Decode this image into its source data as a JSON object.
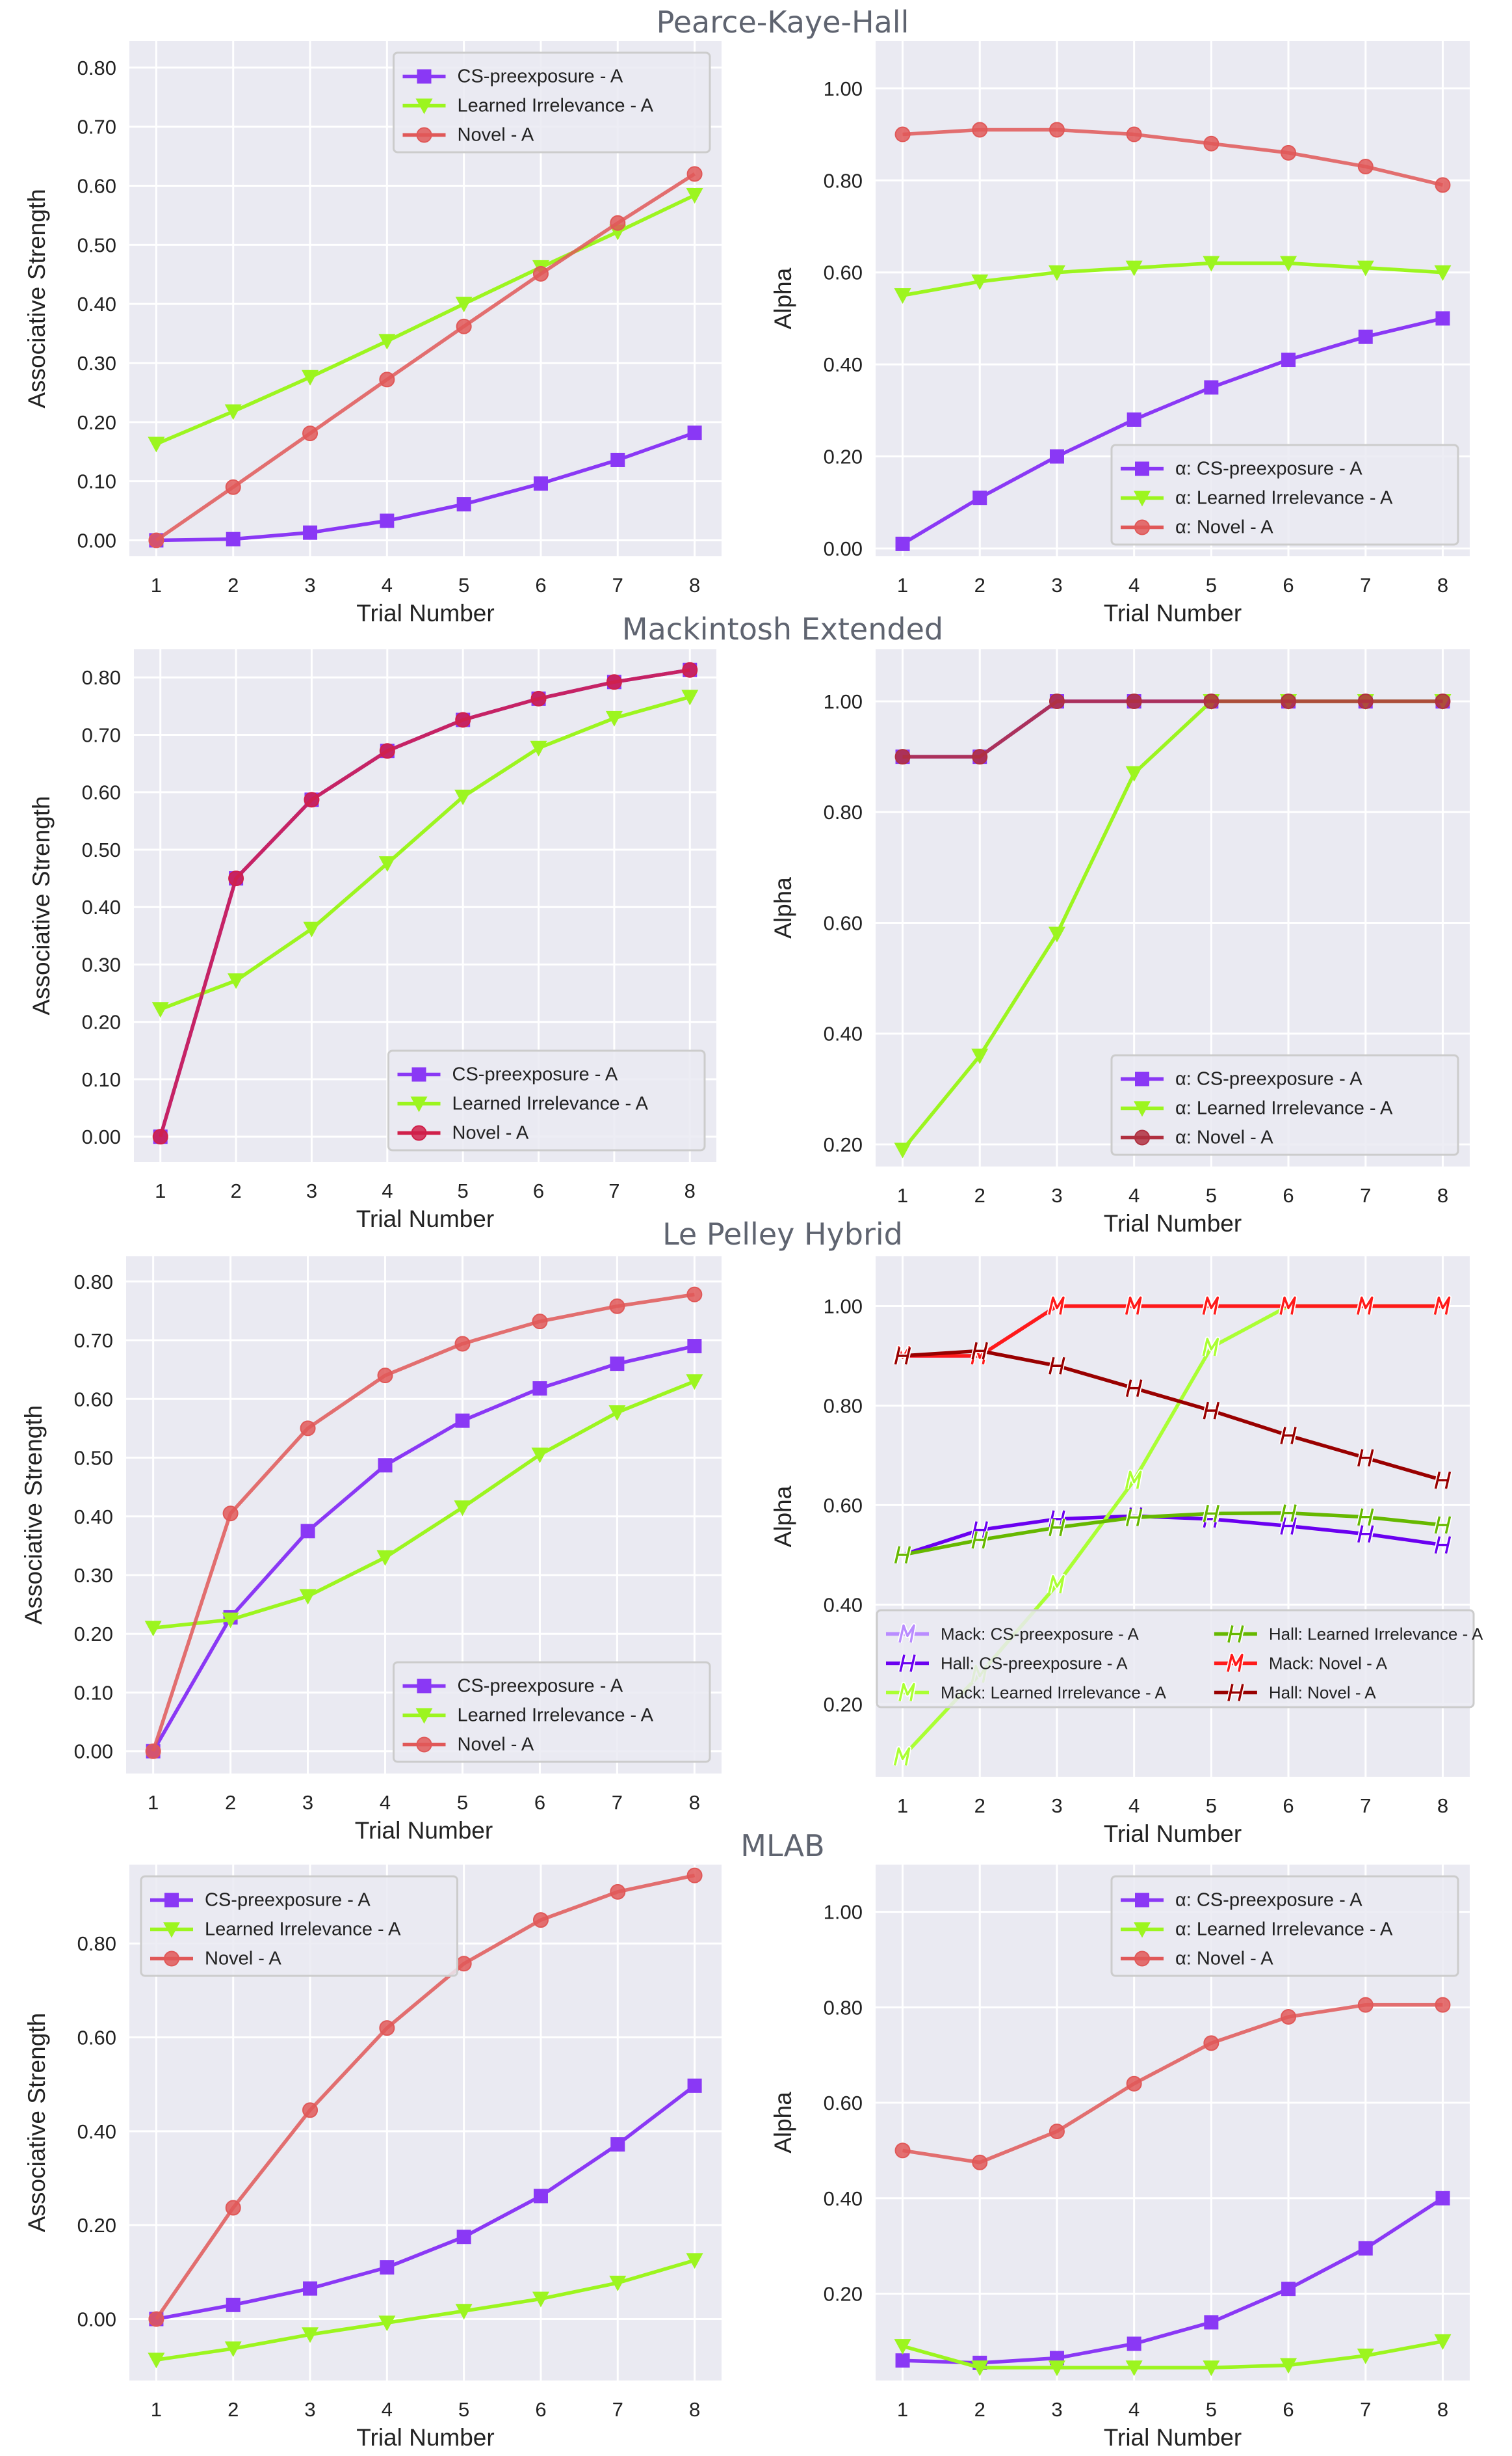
{
  "sections": [
    {
      "title": "Pearce-Kaye-Hall"
    },
    {
      "title": "Mackintosh Extended"
    },
    {
      "title": "Le Pelley Hybrid"
    },
    {
      "title": "MLAB"
    }
  ],
  "chart_data": [
    {
      "type": "line",
      "section": "Pearce-Kaye-Hall",
      "xlabel": "Trial Number",
      "ylabel": "Associative Strength",
      "x": [
        1,
        2,
        3,
        4,
        5,
        6,
        7,
        8
      ],
      "xlim": [
        0.65,
        8.35
      ],
      "ylim": [
        -0.027,
        0.845
      ],
      "xticks": [
        "1",
        "2",
        "3",
        "4",
        "5",
        "6",
        "7",
        "8"
      ],
      "yticks": [
        "0.00",
        "0.10",
        "0.20",
        "0.30",
        "0.40",
        "0.50",
        "0.60",
        "0.70",
        "0.80"
      ],
      "grid": true,
      "legend": "upper right",
      "series": [
        {
          "name": "CS-preexposure - A",
          "color": "#8a38f5",
          "marker": "square",
          "values": [
            0,
            0.002,
            0.013,
            0.033,
            0.061,
            0.096,
            0.136,
            0.182
          ]
        },
        {
          "name": "Learned Irrelevance - A",
          "color": "#9cf51f",
          "marker": "triangle-down",
          "values": [
            0.163,
            0.218,
            0.276,
            0.337,
            0.4,
            0.462,
            0.522,
            0.584
          ]
        },
        {
          "name": "Novel - A",
          "color": "#e05858",
          "marker": "circle",
          "values": [
            0,
            0.09,
            0.181,
            0.272,
            0.362,
            0.451,
            0.537,
            0.62
          ]
        }
      ]
    },
    {
      "type": "line",
      "section": "Pearce-Kaye-Hall",
      "xlabel": "Trial Number",
      "ylabel": "Alpha",
      "x": [
        1,
        2,
        3,
        4,
        5,
        6,
        7,
        8
      ],
      "xlim": [
        0.65,
        8.35
      ],
      "ylim": [
        -0.017,
        1.103
      ],
      "xticks": [
        "1",
        "2",
        "3",
        "4",
        "5",
        "6",
        "7",
        "8"
      ],
      "yticks": [
        "0.00",
        "0.20",
        "0.40",
        "0.60",
        "0.80",
        "1.00"
      ],
      "grid": true,
      "legend": "lower right",
      "series": [
        {
          "name": "α: CS-preexposure - A",
          "color": "#8a38f5",
          "marker": "square",
          "values": [
            0.01,
            0.11,
            0.2,
            0.28,
            0.35,
            0.41,
            0.46,
            0.5
          ]
        },
        {
          "name": "α: Learned Irrelevance - A",
          "color": "#9cf51f",
          "marker": "triangle-down",
          "values": [
            0.55,
            0.58,
            0.6,
            0.61,
            0.62,
            0.62,
            0.61,
            0.6
          ]
        },
        {
          "name": "α: Novel - A",
          "color": "#e05858",
          "marker": "circle",
          "values": [
            0.9,
            0.91,
            0.91,
            0.9,
            0.88,
            0.86,
            0.83,
            0.79
          ]
        }
      ]
    },
    {
      "type": "line",
      "section": "Mackintosh Extended",
      "xlabel": "Trial Number",
      "ylabel": "Associative Strength",
      "x": [
        1,
        2,
        3,
        4,
        5,
        6,
        7,
        8
      ],
      "xlim": [
        0.65,
        8.35
      ],
      "ylim": [
        -0.044,
        0.849
      ],
      "xticks": [
        "1",
        "2",
        "3",
        "4",
        "5",
        "6",
        "7",
        "8"
      ],
      "yticks": [
        "0.00",
        "0.10",
        "0.20",
        "0.30",
        "0.40",
        "0.50",
        "0.60",
        "0.70",
        "0.80"
      ],
      "grid": true,
      "legend": "lower right",
      "series": [
        {
          "name": "CS-preexposure - A",
          "color": "#8a38f5",
          "marker": "square",
          "values": [
            0,
            0.45,
            0.587,
            0.672,
            0.726,
            0.763,
            0.792,
            0.813
          ]
        },
        {
          "name": "Learned Irrelevance - A",
          "color": "#9cf51f",
          "marker": "triangle-down",
          "values": [
            0.222,
            0.272,
            0.362,
            0.476,
            0.592,
            0.677,
            0.729,
            0.766
          ]
        },
        {
          "name": "Novel - A",
          "color": "#d0204a",
          "marker": "circle",
          "values": [
            0,
            0.45,
            0.587,
            0.672,
            0.726,
            0.763,
            0.792,
            0.813
          ]
        }
      ]
    },
    {
      "type": "line",
      "section": "Mackintosh Extended",
      "xlabel": "Trial Number",
      "ylabel": "Alpha",
      "x": [
        1,
        2,
        3,
        4,
        5,
        6,
        7,
        8
      ],
      "xlim": [
        0.65,
        8.35
      ],
      "ylim": [
        0.16,
        1.094
      ],
      "xticks": [
        "1",
        "2",
        "3",
        "4",
        "5",
        "6",
        "7",
        "8"
      ],
      "yticks": [
        "0.20",
        "0.40",
        "0.60",
        "0.80",
        "1.00"
      ],
      "grid": true,
      "legend": "lower right",
      "series": [
        {
          "name": "α: CS-preexposure - A",
          "color": "#8a38f5",
          "marker": "square",
          "values": [
            0.9,
            0.9,
            1,
            1,
            1,
            1,
            1,
            1
          ]
        },
        {
          "name": "α: Learned Irrelevance - A",
          "color": "#9cf51f",
          "marker": "triangle-down",
          "values": [
            0.19,
            0.36,
            0.58,
            0.87,
            1,
            1,
            1,
            1
          ]
        },
        {
          "name": "α: Novel - A",
          "color": "#b03040",
          "marker": "circle",
          "values": [
            0.9,
            0.9,
            1,
            1,
            1,
            1,
            1,
            1
          ]
        }
      ]
    },
    {
      "type": "line",
      "section": "Le Pelley Hybrid",
      "xlabel": "Trial Number",
      "ylabel": "Associative Strength",
      "x": [
        1,
        2,
        3,
        4,
        5,
        6,
        7,
        8
      ],
      "xlim": [
        0.65,
        8.35
      ],
      "ylim": [
        -0.038,
        0.843
      ],
      "xticks": [
        "1",
        "2",
        "3",
        "4",
        "5",
        "6",
        "7",
        "8"
      ],
      "yticks": [
        "0.00",
        "0.10",
        "0.20",
        "0.30",
        "0.40",
        "0.50",
        "0.60",
        "0.70",
        "0.80"
      ],
      "grid": true,
      "legend": "lower right",
      "series": [
        {
          "name": "CS-preexposure - A",
          "color": "#8a38f5",
          "marker": "square",
          "values": [
            0,
            0.228,
            0.375,
            0.487,
            0.563,
            0.618,
            0.66,
            0.69
          ]
        },
        {
          "name": "Learned Irrelevance - A",
          "color": "#9cf51f",
          "marker": "triangle-down",
          "values": [
            0.21,
            0.224,
            0.264,
            0.33,
            0.415,
            0.505,
            0.577,
            0.63
          ]
        },
        {
          "name": "Novel - A",
          "color": "#e05858",
          "marker": "circle",
          "values": [
            0,
            0.405,
            0.55,
            0.64,
            0.694,
            0.732,
            0.758,
            0.778
          ]
        }
      ]
    },
    {
      "type": "line",
      "section": "Le Pelley Hybrid",
      "xlabel": "Trial Number",
      "ylabel": "Alpha",
      "x": [
        1,
        2,
        3,
        4,
        5,
        6,
        7,
        8
      ],
      "xlim": [
        0.65,
        8.35
      ],
      "ylim": [
        0.054,
        1.1
      ],
      "xticks": [
        "1",
        "2",
        "3",
        "4",
        "5",
        "6",
        "7",
        "8"
      ],
      "yticks": [
        "0.20",
        "0.40",
        "0.60",
        "0.80",
        "1.00"
      ],
      "grid": true,
      "legend": "lower center, 2 columns",
      "series": [
        {
          "name": "Mack: CS-preexposure - A",
          "color": "#b98cff",
          "marker": "M",
          "values": [
            0.9,
            0.9,
            1,
            1,
            1,
            1,
            1,
            1
          ]
        },
        {
          "name": "Hall: CS-preexposure - A",
          "color": "#6a00f0",
          "marker": "H",
          "values": [
            0.5,
            0.55,
            0.572,
            0.578,
            0.572,
            0.558,
            0.542,
            0.52
          ]
        },
        {
          "name": "Mack: Learned Irrelevance - A",
          "color": "#aaff33",
          "marker": "M",
          "values": [
            0.094,
            0.26,
            0.44,
            0.65,
            0.917,
            1,
            1,
            1
          ]
        },
        {
          "name": "Hall: Learned Irrelevance - A",
          "color": "#66b800",
          "marker": "H",
          "values": [
            0.5,
            0.53,
            0.555,
            0.575,
            0.583,
            0.584,
            0.576,
            0.56
          ]
        },
        {
          "name": "Mack: Novel - A",
          "color": "#ff1a1a",
          "marker": "M",
          "values": [
            0.9,
            0.9,
            1,
            1,
            1,
            1,
            1,
            1
          ]
        },
        {
          "name": "Hall: Novel - A",
          "color": "#990000",
          "marker": "H",
          "values": [
            0.9,
            0.91,
            0.88,
            0.835,
            0.79,
            0.74,
            0.695,
            0.65
          ]
        }
      ]
    },
    {
      "type": "line",
      "section": "MLAB",
      "xlabel": "Trial Number",
      "ylabel": "Associative Strength",
      "x": [
        1,
        2,
        3,
        4,
        5,
        6,
        7,
        8
      ],
      "xlim": [
        0.65,
        8.35
      ],
      "ylim": [
        -0.131,
        0.968
      ],
      "xticks": [
        "1",
        "2",
        "3",
        "4",
        "5",
        "6",
        "7",
        "8"
      ],
      "yticks": [
        "0.00",
        "0.20",
        "0.40",
        "0.60",
        "0.80"
      ],
      "grid": true,
      "legend": "upper left",
      "series": [
        {
          "name": "CS-preexposure - A",
          "color": "#8a38f5",
          "marker": "square",
          "values": [
            0,
            0.03,
            0.065,
            0.11,
            0.175,
            0.262,
            0.372,
            0.497
          ]
        },
        {
          "name": "Learned Irrelevance - A",
          "color": "#9cf51f",
          "marker": "triangle-down",
          "values": [
            -0.087,
            -0.063,
            -0.033,
            -0.008,
            0.017,
            0.043,
            0.077,
            0.125
          ]
        },
        {
          "name": "Novel - A",
          "color": "#e05858",
          "marker": "circle",
          "values": [
            0,
            0.237,
            0.445,
            0.62,
            0.757,
            0.85,
            0.91,
            0.945
          ]
        }
      ]
    },
    {
      "type": "line",
      "section": "MLAB",
      "xlabel": "Trial Number",
      "ylabel": "Alpha",
      "x": [
        1,
        2,
        3,
        4,
        5,
        6,
        7,
        8
      ],
      "xlim": [
        0.65,
        8.35
      ],
      "ylim": [
        0.018,
        1.099
      ],
      "xticks": [
        "1",
        "2",
        "3",
        "4",
        "5",
        "6",
        "7",
        "8"
      ],
      "yticks": [
        "0.20",
        "0.40",
        "0.60",
        "0.80",
        "1.00"
      ],
      "grid": true,
      "legend": "upper right",
      "series": [
        {
          "name": "α: CS-preexposure - A",
          "color": "#8a38f5",
          "marker": "square",
          "values": [
            0.06,
            0.055,
            0.065,
            0.095,
            0.14,
            0.21,
            0.295,
            0.4
          ]
        },
        {
          "name": "α: Learned Irrelevance - A",
          "color": "#9cf51f",
          "marker": "triangle-down",
          "values": [
            0.09,
            0.045,
            0.045,
            0.045,
            0.045,
            0.05,
            0.07,
            0.1
          ]
        },
        {
          "name": "α: Novel - A",
          "color": "#e05858",
          "marker": "circle",
          "values": [
            0.5,
            0.475,
            0.54,
            0.64,
            0.725,
            0.78,
            0.805,
            0.805
          ]
        }
      ]
    }
  ]
}
